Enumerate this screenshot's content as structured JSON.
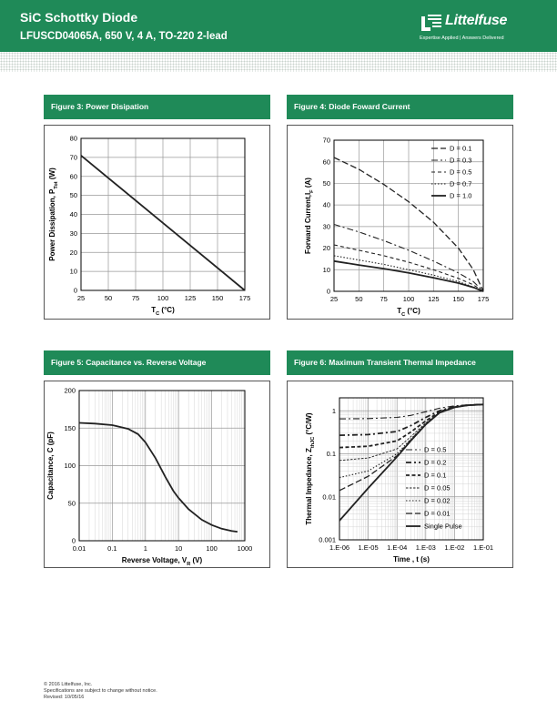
{
  "header": {
    "title": "SiC Schottky Diode",
    "subtitle": "LFUSCD04065A, 650 V, 4 A, TO-220 2-lead",
    "brand": "Littelfuse",
    "tagline": "Expertise Applied  |  Answers Delivered"
  },
  "colors": {
    "brand_green": "#1f8a58",
    "dots": "#c9d3cd"
  },
  "figures": {
    "fig3": "Figure 3: Power Disipation",
    "fig4": "Figure 4: Diode Foward Current",
    "fig5": "Figure 5: Capacitance  vs. Reverse Voltage",
    "fig6": "Figure 6: Maximum Transient Thermal Impedance"
  },
  "footer": {
    "line1": "© 2016 Littelfuse, Inc.",
    "line2": "Specifications are subject to change without notice.",
    "line3": "Revised: 10/05/16"
  },
  "chart_data": [
    {
      "id": "fig3",
      "type": "line",
      "xlabel": "T",
      "xlabel_sub": "C",
      "xlabel_unit": " (°C)",
      "ylabel": "Power Dissipation, P",
      "ylabel_sub": "Tot",
      "ylabel_unit": " (W)",
      "xlim": [
        25,
        175
      ],
      "ylim": [
        0,
        80
      ],
      "xticks": [
        "25",
        "50",
        "75",
        "100",
        "125",
        "150",
        "175"
      ],
      "yticks": [
        "0",
        "10",
        "20",
        "30",
        "40",
        "50",
        "60",
        "70",
        "80"
      ],
      "grid": true,
      "series": [
        {
          "x": [
            25,
            175
          ],
          "y": [
            71,
            0
          ]
        }
      ]
    },
    {
      "id": "fig4",
      "type": "line",
      "xlabel": "T",
      "xlabel_sub": "C",
      "xlabel_unit": " (°C)",
      "ylabel": "Forward Current,I",
      "ylabel_sub": "F",
      "ylabel_unit": " (A)",
      "xlim": [
        25,
        175
      ],
      "ylim": [
        0,
        70
      ],
      "xticks": [
        "25",
        "50",
        "75",
        "100",
        "125",
        "150",
        "175"
      ],
      "yticks": [
        "0",
        "10",
        "20",
        "30",
        "40",
        "50",
        "60",
        "70"
      ],
      "grid": true,
      "legend": "top-right",
      "series": [
        {
          "name": "D = 0.1",
          "dash": "long",
          "x": [
            25,
            50,
            75,
            100,
            125,
            150,
            165,
            175
          ],
          "y": [
            62,
            56.5,
            49.5,
            41.5,
            32,
            20,
            10,
            0
          ]
        },
        {
          "name": "D = 0.3",
          "dash": "dashdot",
          "x": [
            25,
            50,
            75,
            100,
            125,
            150,
            165,
            175
          ],
          "y": [
            31,
            27.5,
            23.5,
            19,
            14,
            8.5,
            4.5,
            0
          ]
        },
        {
          "name": "D = 0.5",
          "dash": "medium",
          "x": [
            25,
            50,
            75,
            100,
            125,
            150,
            165,
            175
          ],
          "y": [
            21.5,
            19,
            16.5,
            13.5,
            10,
            6,
            3,
            0
          ]
        },
        {
          "name": "D = 0.7",
          "dash": "dotted",
          "x": [
            25,
            50,
            75,
            100,
            125,
            150,
            165,
            175
          ],
          "y": [
            16.5,
            14.5,
            12.5,
            10,
            7.5,
            4.5,
            2,
            0
          ]
        },
        {
          "name": "D = 1.0",
          "dash": "solid",
          "x": [
            25,
            50,
            75,
            100,
            125,
            150,
            165,
            175
          ],
          "y": [
            14,
            12.2,
            10.5,
            8.5,
            6.3,
            3.8,
            1.8,
            0
          ]
        }
      ]
    },
    {
      "id": "fig5",
      "type": "line",
      "xscale": "log",
      "xlabel": "Reverse Voltage, V",
      "xlabel_sub": "R",
      "xlabel_unit": " (V)",
      "ylabel": "Capacitance, C (pF)",
      "xlim": [
        0.01,
        1000
      ],
      "ylim": [
        0,
        200
      ],
      "xticks": [
        "0.01",
        "0.1",
        "1",
        "10",
        "100",
        "1000"
      ],
      "yticks": [
        "0",
        "50",
        "100",
        "150",
        "200"
      ],
      "grid": true,
      "series": [
        {
          "x": [
            0.01,
            0.03,
            0.1,
            0.3,
            0.6,
            1,
            2,
            4,
            7,
            10,
            20,
            50,
            100,
            200,
            400,
            600
          ],
          "y": [
            157,
            156,
            154,
            149,
            142,
            131,
            110,
            85,
            66,
            57,
            42,
            28,
            21,
            16,
            13,
            12
          ]
        }
      ]
    },
    {
      "id": "fig6",
      "type": "line",
      "xscale": "log",
      "yscale": "log",
      "xlabel": "Time , t (s)",
      "ylabel": "Thermal Impedance, Z",
      "ylabel_sub": "thJC",
      "ylabel_unit": " (°C/W)",
      "xlim": [
        1e-06,
        0.1
      ],
      "ylim": [
        0.001,
        2
      ],
      "xticks": [
        "1.E-06",
        "1.E-05",
        "1.E-04",
        "1.E-03",
        "1.E-02",
        "1.E-01"
      ],
      "yticks": [
        "0.001",
        "0.01",
        "0.1",
        "1"
      ],
      "grid": true,
      "legend": "lower-right",
      "series": [
        {
          "name": "D = 0.5",
          "dash": "dashdot",
          "x": [
            1e-06,
            1e-05,
            0.0001,
            0.0003,
            0.001,
            0.003,
            0.01,
            0.03,
            0.1
          ],
          "y": [
            0.65,
            0.66,
            0.7,
            0.78,
            0.95,
            1.15,
            1.3,
            1.38,
            1.4
          ]
        },
        {
          "name": "D = 0.2",
          "dash": "dashdotbold",
          "x": [
            1e-06,
            1e-05,
            0.0001,
            0.0003,
            0.001,
            0.003,
            0.01,
            0.03,
            0.1
          ],
          "y": [
            0.27,
            0.28,
            0.33,
            0.45,
            0.7,
            1.0,
            1.25,
            1.36,
            1.4
          ]
        },
        {
          "name": "D = 0.1",
          "dash": "boldmedium",
          "x": [
            1e-06,
            1e-05,
            0.0001,
            0.0003,
            0.001,
            0.003,
            0.01,
            0.03,
            0.1
          ],
          "y": [
            0.14,
            0.15,
            0.2,
            0.32,
            0.58,
            0.95,
            1.22,
            1.35,
            1.4
          ]
        },
        {
          "name": "D = 0.05",
          "dash": "fine",
          "x": [
            1e-06,
            1e-05,
            0.0001,
            0.0003,
            0.001,
            0.003,
            0.01,
            0.03,
            0.1
          ],
          "y": [
            0.07,
            0.08,
            0.13,
            0.25,
            0.52,
            0.92,
            1.2,
            1.35,
            1.4
          ]
        },
        {
          "name": "D = 0.02",
          "dash": "dotted",
          "x": [
            1e-06,
            1e-05,
            0.0001,
            0.0003,
            0.001,
            0.003,
            0.01,
            0.03,
            0.1
          ],
          "y": [
            0.028,
            0.04,
            0.1,
            0.22,
            0.5,
            0.9,
            1.2,
            1.35,
            1.4
          ]
        },
        {
          "name": "D = 0.01",
          "dash": "long",
          "x": [
            1e-06,
            1e-05,
            0.0001,
            0.0003,
            0.001,
            0.003,
            0.01,
            0.03,
            0.1
          ],
          "y": [
            0.014,
            0.03,
            0.09,
            0.21,
            0.49,
            0.9,
            1.2,
            1.35,
            1.4
          ]
        },
        {
          "name": "Single Pulse",
          "dash": "solid",
          "x": [
            1e-06,
            1e-05,
            0.0001,
            0.0003,
            0.001,
            0.003,
            0.01,
            0.03,
            0.1
          ],
          "y": [
            0.0028,
            0.016,
            0.085,
            0.2,
            0.48,
            0.9,
            1.2,
            1.35,
            1.4
          ]
        }
      ]
    }
  ]
}
